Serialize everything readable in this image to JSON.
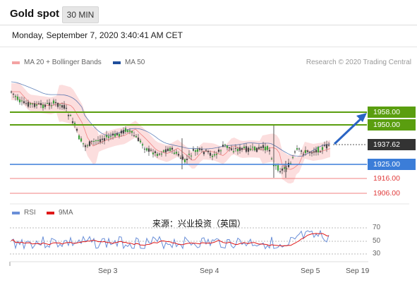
{
  "header": {
    "title": "Gold spot",
    "timeframe": "30 MIN"
  },
  "datetime": "Monday, September 7, 2020 3:40:41 AM CET",
  "legend": {
    "ma20_label": "MA 20 + Bollinger Bands",
    "ma50_label": "MA 50",
    "credit": "Research © 2020 Trading Central"
  },
  "colors": {
    "resistance": "#5a9e0f",
    "support": "#3b7dd8",
    "lower_support": "#f08080",
    "price_tag": "#333333",
    "band_fill": "#fbd3d3",
    "ma50": "#1f4e9c",
    "rsi": "#6a8fd8",
    "rsi_ma": "#e01818"
  },
  "levels": [
    {
      "value": "1958.00",
      "kind": "resistance"
    },
    {
      "value": "1950.00",
      "kind": "resistance"
    },
    {
      "value": "1937.62",
      "kind": "current"
    },
    {
      "value": "1925.00",
      "kind": "support"
    },
    {
      "value": "1916.00",
      "kind": "lower_support"
    },
    {
      "value": "1906.00",
      "kind": "lower_support"
    }
  ],
  "rsi": {
    "rsi_label": "RSI",
    "ma_label": "9MA",
    "axis": [
      "70",
      "50",
      "30"
    ]
  },
  "watermark": "来源：兴业投资（英国）",
  "xaxis": [
    "Sep 3",
    "Sep 4",
    "Sep 5",
    "Sep 19"
  ],
  "icons": {
    "trend_arrow": "arrow-up-right-icon"
  }
}
